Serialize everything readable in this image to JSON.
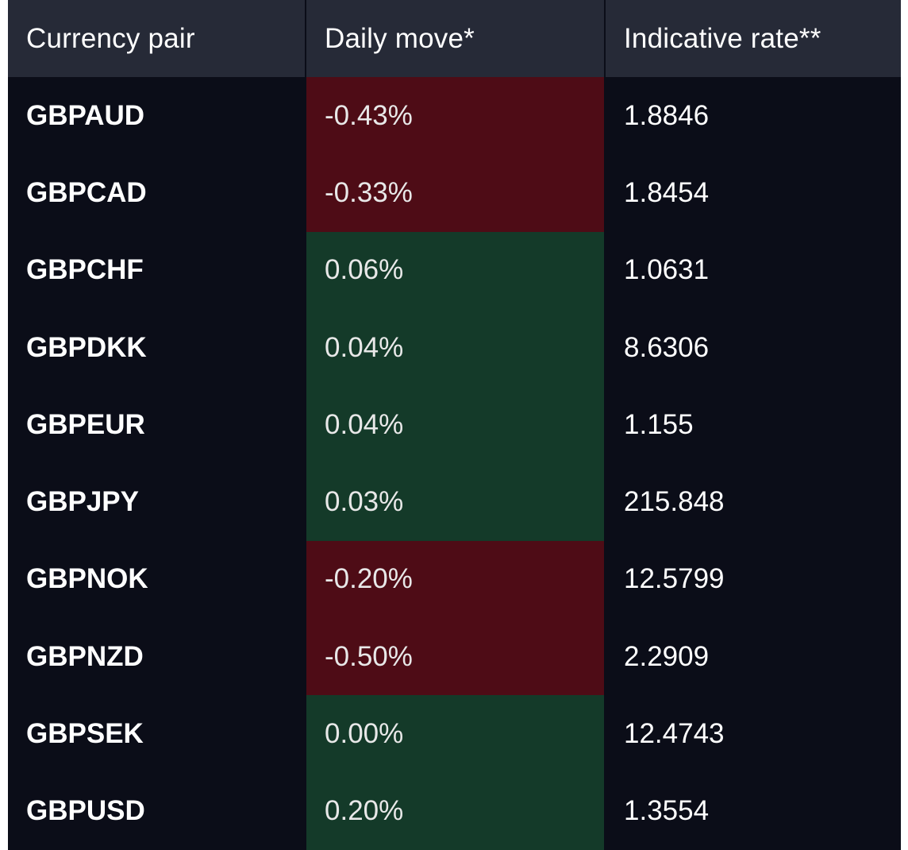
{
  "table": {
    "headers": {
      "pair": "Currency pair",
      "move": "Daily move*",
      "rate": "Indicative rate**"
    },
    "rows": [
      {
        "pair": "GBPAUD",
        "move": "-0.43%",
        "rate": "1.8846",
        "direction": "down"
      },
      {
        "pair": "GBPCAD",
        "move": "-0.33%",
        "rate": "1.8454",
        "direction": "down"
      },
      {
        "pair": "GBPCHF",
        "move": "0.06%",
        "rate": "1.0631",
        "direction": "up"
      },
      {
        "pair": "GBPDKK",
        "move": "0.04%",
        "rate": "8.6306",
        "direction": "up"
      },
      {
        "pair": "GBPEUR",
        "move": "0.04%",
        "rate": "1.155",
        "direction": "up"
      },
      {
        "pair": "GBPJPY",
        "move": "0.03%",
        "rate": "215.848",
        "direction": "up"
      },
      {
        "pair": "GBPNOK",
        "move": "-0.20%",
        "rate": "12.5799",
        "direction": "down"
      },
      {
        "pair": "GBPNZD",
        "move": "-0.50%",
        "rate": "2.2909",
        "direction": "down"
      },
      {
        "pair": "GBPSEK",
        "move": "0.00%",
        "rate": "12.4743",
        "direction": "up"
      },
      {
        "pair": "GBPUSD",
        "move": "0.20%",
        "rate": "1.3554",
        "direction": "up"
      }
    ]
  },
  "colors": {
    "background": "#0b0d18",
    "header": "#262a37",
    "negative": "#4e0c16",
    "positive": "#143a29",
    "text": "#ffffff"
  }
}
